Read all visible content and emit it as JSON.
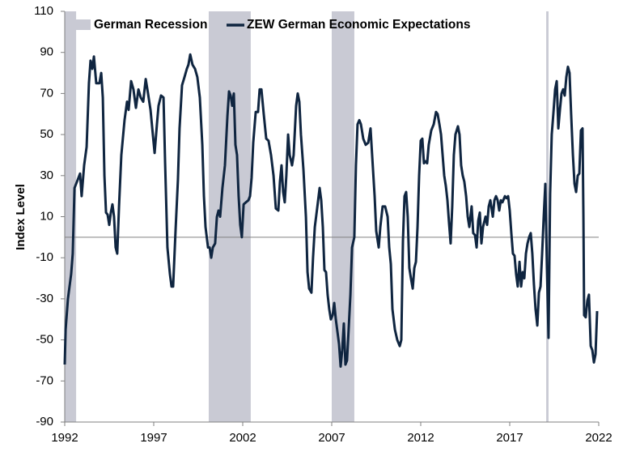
{
  "chart_data": {
    "type": "line",
    "y_label": "Index Level",
    "xlim": [
      1992,
      2022
    ],
    "xticks": [
      1992,
      1997,
      2002,
      2007,
      2012,
      2017,
      2022
    ],
    "ylim": [
      -90,
      110
    ],
    "yticks": [
      -90,
      -70,
      -50,
      -30,
      -10,
      10,
      30,
      50,
      70,
      90,
      110
    ],
    "recessions": {
      "name": "German Recession",
      "color": "#c9cad4",
      "ranges": [
        [
          1992.0,
          1992.64
        ],
        [
          2000.09,
          2002.45
        ],
        [
          2007.0,
          2008.27
        ],
        [
          2019.05,
          2019.18
        ]
      ]
    },
    "x": [
      1992.0,
      1992.05,
      1992.18,
      1992.36,
      1992.45,
      1992.55,
      1992.73,
      1992.86,
      1992.95,
      1993.09,
      1993.23,
      1993.36,
      1993.45,
      1993.55,
      1993.64,
      1993.77,
      1993.95,
      1994.05,
      1994.14,
      1994.23,
      1994.32,
      1994.41,
      1994.5,
      1994.59,
      1994.68,
      1994.77,
      1994.86,
      1994.95,
      1995.05,
      1995.18,
      1995.36,
      1995.5,
      1995.59,
      1995.73,
      1995.86,
      1996.0,
      1996.14,
      1996.27,
      1996.41,
      1996.55,
      1996.68,
      1996.82,
      1996.95,
      1997.05,
      1997.18,
      1997.27,
      1997.41,
      1997.55,
      1997.64,
      1997.77,
      1997.91,
      1998.0,
      1998.09,
      1998.23,
      1998.36,
      1998.45,
      1998.59,
      1998.73,
      1998.86,
      1998.95,
      1999.05,
      1999.18,
      1999.32,
      1999.45,
      1999.59,
      1999.73,
      1999.82,
      1999.91,
      2000.05,
      2000.14,
      2000.23,
      2000.32,
      2000.45,
      2000.55,
      2000.64,
      2000.73,
      2000.86,
      2001.0,
      2001.14,
      2001.23,
      2001.32,
      2001.41,
      2001.5,
      2001.59,
      2001.68,
      2001.77,
      2001.86,
      2001.95,
      2002.05,
      2002.18,
      2002.32,
      2002.41,
      2002.5,
      2002.59,
      2002.73,
      2002.86,
      2002.95,
      2003.05,
      2003.18,
      2003.32,
      2003.45,
      2003.59,
      2003.73,
      2003.86,
      2004.0,
      2004.09,
      2004.18,
      2004.27,
      2004.36,
      2004.45,
      2004.55,
      2004.64,
      2004.77,
      2004.86,
      2005.0,
      2005.09,
      2005.18,
      2005.27,
      2005.41,
      2005.55,
      2005.64,
      2005.73,
      2005.86,
      2005.95,
      2006.05,
      2006.18,
      2006.32,
      2006.41,
      2006.5,
      2006.59,
      2006.68,
      2006.77,
      2006.86,
      2006.95,
      2007.05,
      2007.14,
      2007.23,
      2007.32,
      2007.41,
      2007.5,
      2007.59,
      2007.68,
      2007.77,
      2007.86,
      2007.95,
      2008.05,
      2008.14,
      2008.27,
      2008.36,
      2008.45,
      2008.55,
      2008.64,
      2008.77,
      2008.91,
      2009.05,
      2009.18,
      2009.27,
      2009.41,
      2009.5,
      2009.64,
      2009.73,
      2009.86,
      2010.0,
      2010.14,
      2010.23,
      2010.32,
      2010.41,
      2010.55,
      2010.68,
      2010.82,
      2010.91,
      2011.0,
      2011.09,
      2011.18,
      2011.27,
      2011.36,
      2011.45,
      2011.55,
      2011.64,
      2011.73,
      2011.82,
      2011.91,
      2012.0,
      2012.09,
      2012.18,
      2012.27,
      2012.36,
      2012.45,
      2012.59,
      2012.73,
      2012.86,
      2012.95,
      2013.05,
      2013.14,
      2013.23,
      2013.32,
      2013.41,
      2013.5,
      2013.59,
      2013.68,
      2013.77,
      2013.86,
      2013.95,
      2014.09,
      2014.18,
      2014.27,
      2014.36,
      2014.45,
      2014.55,
      2014.64,
      2014.73,
      2014.86,
      2014.95,
      2015.05,
      2015.14,
      2015.23,
      2015.32,
      2015.41,
      2015.5,
      2015.64,
      2015.73,
      2015.82,
      2015.91,
      2016.05,
      2016.14,
      2016.23,
      2016.32,
      2016.41,
      2016.5,
      2016.59,
      2016.73,
      2016.82,
      2016.91,
      2017.0,
      2017.09,
      2017.18,
      2017.27,
      2017.36,
      2017.45,
      2017.55,
      2017.64,
      2017.73,
      2017.82,
      2017.91,
      2018.0,
      2018.09,
      2018.18,
      2018.27,
      2018.36,
      2018.45,
      2018.55,
      2018.64,
      2018.73,
      2018.82,
      2018.91,
      2019.0,
      2019.09,
      2019.18,
      2019.27,
      2019.36,
      2019.45,
      2019.55,
      2019.64,
      2019.73,
      2019.82,
      2019.91,
      2020.0,
      2020.09,
      2020.18,
      2020.27,
      2020.36,
      2020.45,
      2020.55,
      2020.64,
      2020.73,
      2020.82,
      2020.91,
      2021.0,
      2021.09,
      2021.14,
      2021.18,
      2021.27,
      2021.36,
      2021.45,
      2021.55,
      2021.64,
      2021.73,
      2021.82,
      2021.91
    ],
    "series": [
      {
        "name": "ZEW German Economic Expectations",
        "color": "#0f2540",
        "values": [
          -62,
          -45,
          -30,
          -18,
          -8,
          24,
          28,
          31,
          20,
          35,
          44,
          75,
          86,
          82,
          88,
          75,
          75,
          80,
          68,
          30,
          12,
          11,
          6,
          12,
          16,
          10,
          -5,
          -8,
          15,
          40,
          57,
          66,
          62,
          76,
          72,
          63,
          72,
          68,
          66,
          77,
          70,
          62,
          50,
          41,
          55,
          64,
          69,
          68,
          36,
          -5,
          -18,
          -24,
          -24,
          4,
          28,
          53,
          74,
          78,
          82,
          84,
          89,
          84,
          82,
          78,
          68,
          45,
          20,
          5,
          -5,
          -5,
          -10,
          -5,
          -3,
          10,
          13,
          10,
          24,
          35,
          59,
          71,
          69,
          64,
          70,
          45,
          40,
          20,
          6,
          0,
          16,
          17,
          18,
          20,
          29,
          46,
          61,
          61,
          72,
          72,
          60,
          48,
          47,
          40,
          30,
          14,
          13,
          27,
          35,
          22,
          17,
          30,
          50,
          40,
          35,
          40,
          64,
          70,
          66,
          50,
          33,
          10,
          -17,
          -25,
          -27,
          -10,
          5,
          14,
          24,
          18,
          5,
          -16,
          -17,
          -28,
          -35,
          -40,
          -38,
          -32,
          -40,
          -46,
          -52,
          -63,
          -55,
          -42,
          -62,
          -60,
          -45,
          -28,
          -5,
          0,
          35,
          55,
          57,
          55,
          48,
          45,
          46,
          53,
          40,
          20,
          3,
          -5,
          5,
          15,
          15,
          10,
          -5,
          -13,
          -35,
          -45,
          -50,
          -53,
          -50,
          -2,
          20,
          22,
          10,
          -15,
          -20,
          -25,
          -15,
          -12,
          5,
          30,
          47,
          48,
          36,
          37,
          36,
          45,
          52,
          55,
          61,
          60,
          55,
          50,
          40,
          30,
          25,
          18,
          7,
          -3,
          15,
          40,
          50,
          54,
          50,
          35,
          30,
          27,
          20,
          10,
          5,
          15,
          2,
          1,
          -5,
          8,
          12,
          -3,
          5,
          10,
          6,
          15,
          18,
          10,
          18,
          20,
          18,
          13,
          18,
          17,
          20,
          19,
          20,
          13,
          2,
          -8,
          -9,
          -18,
          -24,
          -12,
          -24,
          -17,
          -20,
          -8,
          -3,
          0,
          2,
          -8,
          -23,
          -35,
          -43,
          -27,
          -24,
          -8,
          10,
          26,
          -15,
          -49,
          21,
          50,
          60,
          72,
          76,
          53,
          62,
          70,
          72,
          69,
          78,
          83,
          80,
          60,
          40,
          26,
          22,
          30,
          31,
          52,
          53,
          10,
          -38,
          -39,
          -31,
          -28,
          -53,
          -55,
          -61,
          -57,
          -36
        ]
      }
    ]
  }
}
